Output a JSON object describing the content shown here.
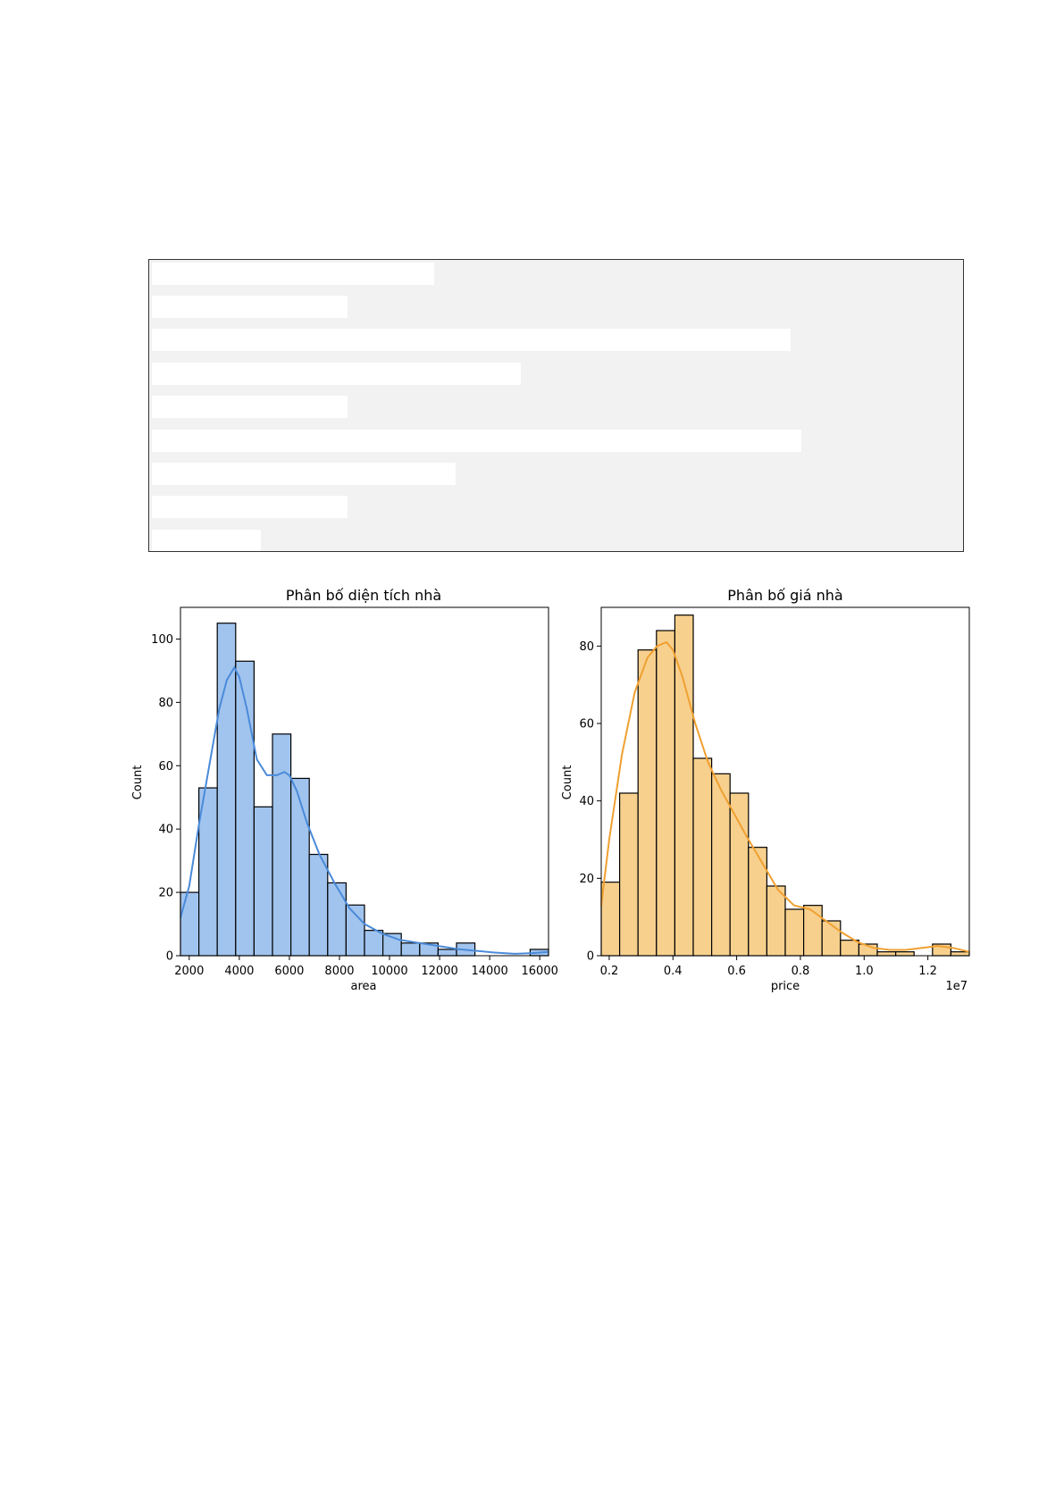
{
  "chart_data": [
    {
      "type": "bar",
      "title": "Phân bố diện tích nhà",
      "xlabel": "area",
      "ylabel": "Count",
      "xlim": [
        1650,
        16350
      ],
      "ylim": [
        0,
        110
      ],
      "xticks": [
        2000,
        4000,
        6000,
        8000,
        10000,
        12000,
        14000,
        16000
      ],
      "xtick_labels": [
        "2000",
        "4000",
        "6000",
        "8000",
        "10000",
        "12000",
        "14000",
        "16000"
      ],
      "yticks": [
        0,
        20,
        40,
        60,
        80,
        100
      ],
      "ytick_labels": [
        "0",
        "20",
        "40",
        "60",
        "80",
        "100"
      ],
      "bin_start": 1650,
      "bin_width": 735,
      "values": [
        20,
        53,
        105,
        93,
        47,
        70,
        56,
        32,
        23,
        16,
        8,
        7,
        4,
        4,
        2,
        4,
        0,
        0,
        0,
        2
      ],
      "kde_x": [
        1650,
        2000,
        2400,
        2800,
        3200,
        3500,
        3800,
        4000,
        4300,
        4700,
        5100,
        5500,
        5800,
        6000,
        6300,
        6700,
        7200,
        7800,
        8400,
        9000,
        9700,
        10400,
        11200,
        12000,
        12800,
        13500,
        14200,
        15000,
        15700,
        16350
      ],
      "kde_y": [
        12,
        22,
        42,
        60,
        78,
        87,
        91,
        88,
        78,
        62,
        57,
        57,
        58,
        57,
        52,
        42,
        32,
        23,
        15,
        10,
        7,
        5,
        4,
        3,
        2,
        1.5,
        1,
        0.6,
        0.8,
        1.2
      ],
      "bar_color": "#a1c4ee",
      "line_color": "#4a8ad9",
      "grid": false
    },
    {
      "type": "bar",
      "title": "Phân bố giá nhà",
      "xlabel": "price",
      "ylabel": "Count",
      "offset_label": "1e7",
      "xlim": [
        1750000,
        13300000
      ],
      "ylim": [
        0,
        90
      ],
      "xticks": [
        2000000,
        4000000,
        6000000,
        8000000,
        10000000,
        12000000
      ],
      "xtick_labels": [
        "0.2",
        "0.4",
        "0.6",
        "0.8",
        "1.0",
        "1.2"
      ],
      "yticks": [
        0,
        20,
        40,
        60,
        80
      ],
      "ytick_labels": [
        "0",
        "20",
        "40",
        "60",
        "80"
      ],
      "bin_start": 1750000,
      "bin_width": 577500,
      "values": [
        19,
        42,
        79,
        84,
        88,
        51,
        47,
        42,
        28,
        18,
        12,
        13,
        9,
        4,
        3,
        1,
        1,
        0,
        3,
        1
      ],
      "kde_x": [
        1750000,
        2000000,
        2400000,
        2800000,
        3200000,
        3500000,
        3800000,
        4000000,
        4300000,
        4700000,
        5100000,
        5500000,
        5900000,
        6300000,
        6800000,
        7300000,
        7800000,
        8300000,
        8800000,
        9300000,
        9800000,
        10300000,
        10800000,
        11300000,
        11800000,
        12300000,
        12800000,
        13300000
      ],
      "kde_y": [
        13,
        30,
        52,
        68,
        77,
        80,
        81,
        79,
        72,
        60,
        50,
        43,
        37,
        31,
        24,
        17,
        13,
        12,
        9,
        6,
        3.5,
        2,
        1.5,
        1.5,
        2,
        2.5,
        2,
        1
      ],
      "bar_color": "#f7d08e",
      "line_color": "#f0a030",
      "grid": false
    }
  ]
}
